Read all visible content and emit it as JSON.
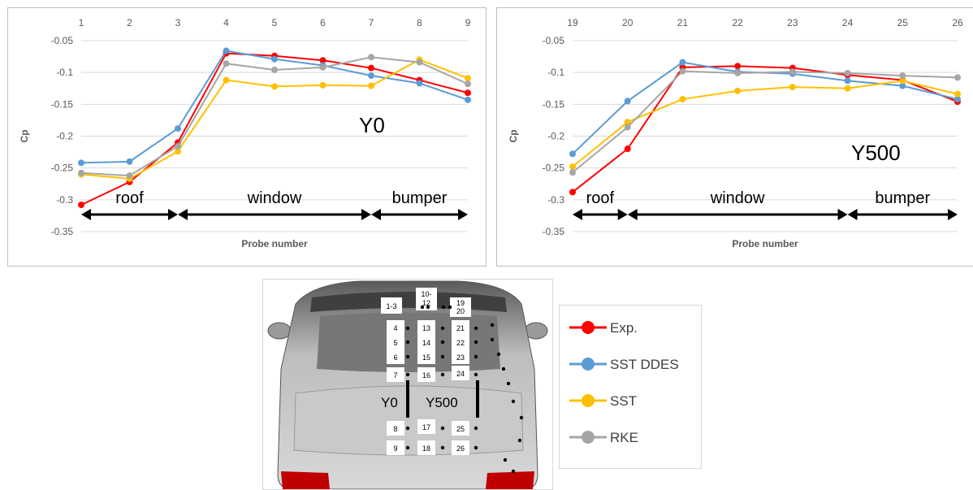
{
  "legend": [
    {
      "label": "Exp.",
      "color": "#ff0000"
    },
    {
      "label": "SST DDES",
      "color": "#5b9bd5"
    },
    {
      "label": "SST",
      "color": "#ffc000"
    },
    {
      "label": "RKE",
      "color": "#a5a5a5"
    }
  ],
  "car": {
    "probe_labels": [
      "1-3",
      "10-12",
      "19 20",
      "4",
      "13",
      "21",
      "5",
      "14",
      "22",
      "6",
      "15",
      "23",
      "7",
      "16",
      "24",
      "8",
      "17",
      "25",
      "9",
      "18",
      "26"
    ],
    "y0_label": "Y0",
    "y500_label": "Y500",
    "body_color": "#8c8c8c",
    "lamp_color": "#c00000"
  },
  "chart_data": [
    {
      "type": "line",
      "x": [
        1,
        2,
        3,
        4,
        5,
        6,
        7,
        8,
        9
      ],
      "xlabel": "Probe number",
      "ylabel": "Cp",
      "ylim": [
        -0.35,
        -0.05
      ],
      "yticks": [
        -0.05,
        -0.1,
        -0.15,
        -0.2,
        -0.25,
        -0.3,
        -0.35
      ],
      "ytick_labels": [
        "-0.05",
        "-0.1",
        "-0.15",
        "-0.2",
        "-0.25",
        "-0.3",
        "-0.35"
      ],
      "x_axis_position": "top",
      "grid": "horizontal",
      "annotation": "Y0",
      "regions": [
        {
          "label": "roof",
          "from": 1,
          "to": 3
        },
        {
          "label": "window",
          "from": 3,
          "to": 7
        },
        {
          "label": "bumper",
          "from": 7,
          "to": 9
        }
      ],
      "series": [
        {
          "name": "Exp.",
          "color": "#ff0000",
          "values": [
            -0.308,
            -0.272,
            -0.21,
            -0.07,
            -0.074,
            -0.081,
            -0.093,
            -0.112,
            -0.132
          ]
        },
        {
          "name": "SST DDES",
          "color": "#5b9bd5",
          "values": [
            -0.242,
            -0.24,
            -0.188,
            -0.066,
            -0.079,
            -0.089,
            -0.105,
            -0.117,
            -0.143
          ]
        },
        {
          "name": "SST",
          "color": "#ffc000",
          "values": [
            -0.26,
            -0.267,
            -0.224,
            -0.112,
            -0.122,
            -0.12,
            -0.121,
            -0.08,
            -0.109
          ]
        },
        {
          "name": "RKE",
          "color": "#a5a5a5",
          "values": [
            -0.258,
            -0.262,
            -0.216,
            -0.086,
            -0.096,
            -0.092,
            -0.076,
            -0.084,
            -0.118
          ]
        }
      ]
    },
    {
      "type": "line",
      "x": [
        19,
        20,
        21,
        22,
        23,
        24,
        25,
        26
      ],
      "xlabel": "Probe number",
      "ylabel": "Cp",
      "ylim": [
        -0.35,
        -0.05
      ],
      "yticks": [
        -0.05,
        -0.1,
        -0.15,
        -0.2,
        -0.25,
        -0.3,
        -0.35
      ],
      "ytick_labels": [
        "-0.05",
        "-0.1",
        "-0.15",
        "-0.2",
        "-0.25",
        "-0.3",
        "-0.35"
      ],
      "x_axis_position": "top",
      "grid": "horizontal",
      "annotation": "Y500",
      "regions": [
        {
          "label": "roof",
          "from": 19,
          "to": 20
        },
        {
          "label": "window",
          "from": 20,
          "to": 24
        },
        {
          "label": "bumper",
          "from": 24,
          "to": 26
        }
      ],
      "series": [
        {
          "name": "Exp.",
          "color": "#ff0000",
          "values": [
            -0.288,
            -0.22,
            -0.092,
            -0.09,
            -0.093,
            -0.104,
            -0.112,
            -0.146
          ]
        },
        {
          "name": "SST DDES",
          "color": "#5b9bd5",
          "values": [
            -0.228,
            -0.145,
            -0.084,
            -0.099,
            -0.102,
            -0.113,
            -0.121,
            -0.142
          ]
        },
        {
          "name": "SST",
          "color": "#ffc000",
          "values": [
            -0.248,
            -0.178,
            -0.142,
            -0.129,
            -0.123,
            -0.125,
            -0.113,
            -0.134
          ]
        },
        {
          "name": "RKE",
          "color": "#a5a5a5",
          "values": [
            -0.257,
            -0.186,
            -0.098,
            -0.101,
            -0.099,
            -0.101,
            -0.105,
            -0.108
          ]
        }
      ]
    }
  ]
}
